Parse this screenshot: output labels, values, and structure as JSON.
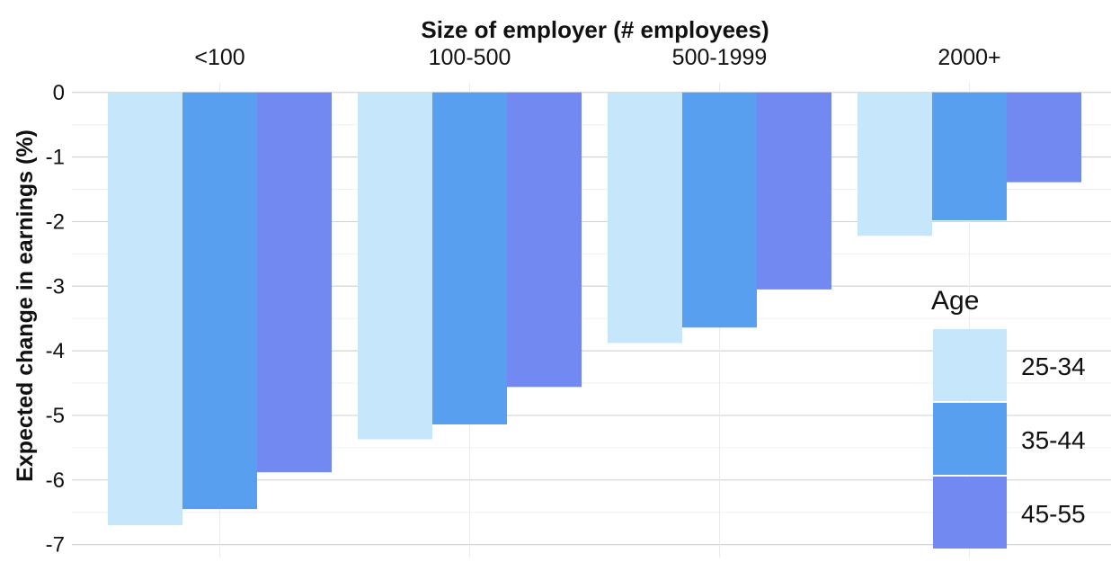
{
  "chart_data": {
    "type": "bar",
    "title": "Size of employer (# employees)",
    "ylabel": "Expected change in earnings (%)",
    "categories": [
      "<100",
      "100-500",
      "500-1999",
      "2000+"
    ],
    "category_axis_position": "top",
    "ylim": [
      -7.2,
      0.15
    ],
    "yticks": [
      0,
      -1,
      -2,
      -3,
      -4,
      -5,
      -6,
      -7
    ],
    "ytick_labels": [
      "0",
      "-1",
      "-2",
      "-3",
      "-4",
      "-5",
      "-6",
      "-7"
    ],
    "grid": true,
    "legend": {
      "title": "Age",
      "position": "right"
    },
    "series": [
      {
        "name": "25-34",
        "color": "#c6e6fb",
        "values": [
          -6.7,
          -5.37,
          -3.88,
          -2.22
        ]
      },
      {
        "name": "35-44",
        "color": "#589ff0",
        "values": [
          -6.45,
          -5.14,
          -3.64,
          -1.98
        ]
      },
      {
        "name": "45-55",
        "color": "#7189f0",
        "values": [
          -5.88,
          -4.56,
          -3.05,
          -1.39
        ]
      }
    ]
  }
}
